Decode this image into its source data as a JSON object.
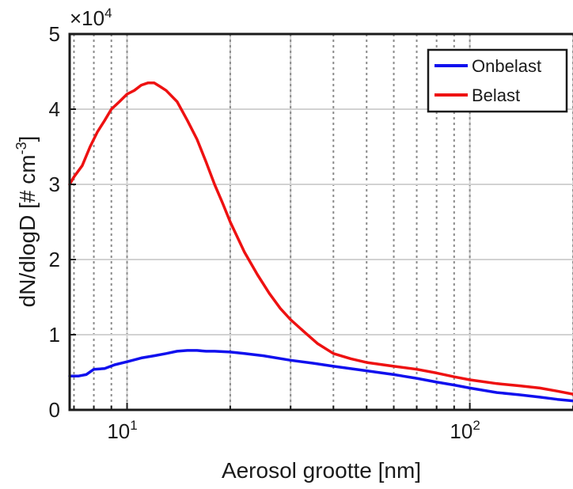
{
  "chart_data": {
    "type": "line",
    "title": "",
    "xlabel": "Aerosol grootte [nm]",
    "ylabel_main": "dN/dlogD [# cm",
    "ylabel_sup": "-3",
    "ylabel_end": "]",
    "xscale": "log",
    "xlim": [
      6.8,
      200
    ],
    "ylim": [
      0,
      50000
    ],
    "y_multiplier": {
      "base": "×10",
      "exponent": "4"
    },
    "grid": true,
    "legend_position": "top-right",
    "x_ticks": [
      {
        "value": 10,
        "base": "10",
        "exp": "1"
      },
      {
        "value": 100,
        "base": "10",
        "exp": "2"
      }
    ],
    "x_major_grid": [
      10,
      20,
      30,
      100,
      200
    ],
    "x_minor_grid": [
      7,
      8,
      9,
      40,
      50,
      60,
      70,
      80,
      90
    ],
    "y_ticks": [
      {
        "value": 0,
        "label": "0"
      },
      {
        "value": 10000,
        "label": "1"
      },
      {
        "value": 20000,
        "label": "2"
      },
      {
        "value": 30000,
        "label": "3"
      },
      {
        "value": 40000,
        "label": "4"
      },
      {
        "value": 50000,
        "label": "5"
      }
    ],
    "series": [
      {
        "name": "Onbelast",
        "color": "#1010ee",
        "x": [
          6.8,
          7.2,
          7.6,
          8,
          8.6,
          9.2,
          10,
          11,
          12,
          13,
          14,
          15,
          16,
          17,
          18,
          20,
          22,
          25,
          30,
          35,
          40,
          50,
          60,
          70,
          80,
          90,
          100,
          120,
          140,
          160,
          180,
          200
        ],
        "y": [
          4500,
          4500,
          4700,
          5400,
          5500,
          6000,
          6400,
          6900,
          7200,
          7500,
          7800,
          7900,
          7900,
          7800,
          7800,
          7700,
          7500,
          7200,
          6600,
          6200,
          5800,
          5200,
          4700,
          4200,
          3700,
          3300,
          2900,
          2300,
          2000,
          1700,
          1400,
          1200
        ]
      },
      {
        "name": "Belast",
        "color": "#ee1111",
        "x": [
          6.8,
          7,
          7.4,
          7.8,
          8.2,
          8.6,
          9,
          9.5,
          10,
          10.5,
          11,
          11.5,
          12,
          12.5,
          13,
          14,
          15,
          16,
          17,
          18,
          19,
          20,
          22,
          24,
          26,
          28,
          30,
          33,
          36,
          40,
          45,
          50,
          60,
          70,
          80,
          90,
          100,
          120,
          140,
          160,
          180,
          200
        ],
        "y": [
          30000,
          31000,
          32500,
          35000,
          37000,
          38500,
          40000,
          41000,
          42000,
          42500,
          43200,
          43500,
          43500,
          43000,
          42500,
          41000,
          38500,
          36000,
          33000,
          30000,
          27500,
          25000,
          21000,
          18000,
          15500,
          13500,
          12000,
          10300,
          8800,
          7500,
          6800,
          6300,
          5800,
          5400,
          4900,
          4400,
          4000,
          3500,
          3200,
          2900,
          2500,
          2100
        ]
      }
    ]
  }
}
